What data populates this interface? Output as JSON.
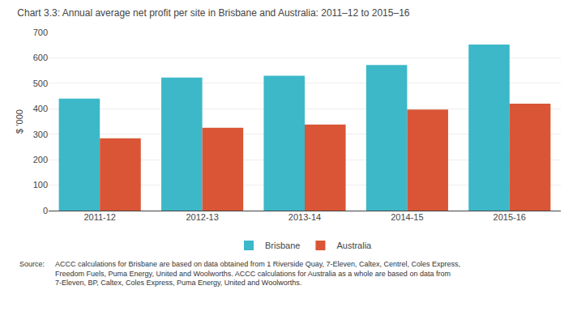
{
  "chart_data": {
    "type": "bar",
    "title": "Chart 3.3: Annual average net profit per site in Brisbane and Australia: 2011–12 to 2015–16",
    "categories": [
      "2011-12",
      "2012-13",
      "2013-14",
      "2014-15",
      "2015-16"
    ],
    "series": [
      {
        "name": "Brisbane",
        "color": "#3cb8c8",
        "values": [
          440,
          523,
          530,
          572,
          652
        ]
      },
      {
        "name": "Australia",
        "color": "#d95535",
        "values": [
          284,
          325,
          338,
          397,
          420
        ]
      }
    ],
    "ylabel": "$ ’000",
    "ylim": [
      0,
      700
    ],
    "yticks": [
      0,
      100,
      200,
      300,
      400,
      500,
      600,
      700
    ],
    "grid": true,
    "legend": "bottom",
    "annotations": [
      "Source:",
      "ACCC calculations for Brisbane are based on data obtained from 1 Riverside Quay, 7-Eleven, Caltex, Centrel, Coles Express,\nFreedom Fuels, Puma Energy, United and Woolworths. ACCC calculations for Australia as a whole are based on data from\n7-Eleven, BP, Caltex, Coles Express, Puma Energy, United and Woolworths."
    ]
  }
}
